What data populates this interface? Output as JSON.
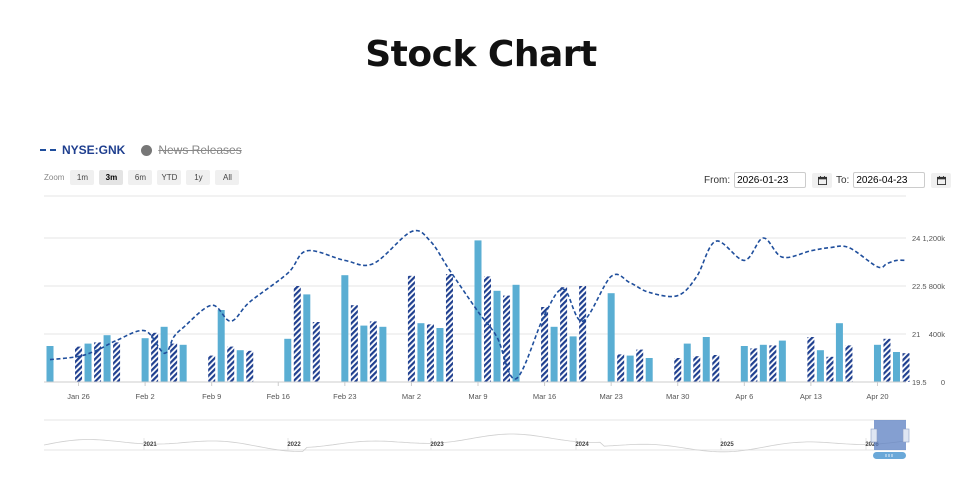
{
  "page": {
    "title": "Stock Chart"
  },
  "legend": {
    "primary": "NYSE:GNK",
    "secondary": "News Releases"
  },
  "zoom": {
    "label": "Zoom",
    "buttons": [
      "1m",
      "3m",
      "6m",
      "YTD",
      "1y",
      "All"
    ],
    "active": "3m"
  },
  "range": {
    "from_label": "From:",
    "from_value": "2026-01-23",
    "to_label": "To:",
    "to_value": "2026-04-23"
  },
  "icons": {
    "calendar": "calendar-icon",
    "news_marker": "circle-dot-icon",
    "navigator_handle": "grip-icon"
  },
  "colors": {
    "price_line": "#1f4e9c",
    "volume_bar": "#5aaed3",
    "volume_bar_hatched": "#1f3f8f",
    "navigator_mask": "#5b7fc2"
  },
  "chart_data": {
    "type": "line",
    "series": [
      {
        "name": "NYSE:GNK",
        "type": "line",
        "axis": "price",
        "x": [
          "2026-01-23",
          "2026-01-26",
          "2026-01-28",
          "2026-01-30",
          "2026-02-02",
          "2026-02-04",
          "2026-02-05",
          "2026-02-06",
          "2026-02-09",
          "2026-02-11",
          "2026-02-13",
          "2026-02-17",
          "2026-02-19",
          "2026-02-23",
          "2026-02-26",
          "2026-03-02",
          "2026-03-04",
          "2026-03-06",
          "2026-03-09",
          "2026-03-11",
          "2026-03-13",
          "2026-03-16",
          "2026-03-18",
          "2026-03-20",
          "2026-03-23",
          "2026-03-25",
          "2026-03-27",
          "2026-03-30",
          "2026-04-01",
          "2026-04-03",
          "2026-04-06",
          "2026-04-08",
          "2026-04-10",
          "2026-04-13",
          "2026-04-15",
          "2026-04-17",
          "2026-04-20",
          "2026-04-21",
          "2026-04-22",
          "2026-04-23"
        ],
        "values": [
          20.2,
          20.3,
          20.5,
          20.8,
          21.1,
          20.4,
          20.9,
          21.2,
          21.9,
          21.4,
          22.0,
          22.9,
          23.6,
          23.3,
          23.2,
          24.2,
          23.9,
          23.0,
          21.7,
          20.9,
          19.6,
          21.6,
          22.4,
          21.4,
          22.8,
          22.6,
          22.3,
          22.2,
          22.8,
          23.9,
          23.3,
          24.0,
          23.4,
          23.6,
          23.7,
          23.7,
          23.1,
          23.2,
          23.3,
          23.3
        ]
      },
      {
        "name": "",
        "type": "column",
        "axis": "volume",
        "x": [
          "2026-01-23",
          "2026-01-26",
          "2026-01-27",
          "2026-01-28",
          "2026-01-29",
          "2026-01-30",
          "2026-02-02",
          "2026-02-03",
          "2026-02-04",
          "2026-02-05",
          "2026-02-06",
          "2026-02-09",
          "2026-02-10",
          "2026-02-11",
          "2026-02-12",
          "2026-02-13",
          "2026-02-17",
          "2026-02-18",
          "2026-02-19",
          "2026-02-20",
          "2026-02-23",
          "2026-02-24",
          "2026-02-25",
          "2026-02-26",
          "2026-02-27",
          "2026-03-02",
          "2026-03-03",
          "2026-03-04",
          "2026-03-05",
          "2026-03-06",
          "2026-03-09",
          "2026-03-10",
          "2026-03-11",
          "2026-03-12",
          "2026-03-13",
          "2026-03-16",
          "2026-03-17",
          "2026-03-18",
          "2026-03-19",
          "2026-03-20",
          "2026-03-23",
          "2026-03-24",
          "2026-03-25",
          "2026-03-26",
          "2026-03-27",
          "2026-03-30",
          "2026-03-31",
          "2026-04-01",
          "2026-04-02",
          "2026-04-03",
          "2026-04-06",
          "2026-04-07",
          "2026-04-08",
          "2026-04-09",
          "2026-04-10",
          "2026-04-13",
          "2026-04-14",
          "2026-04-15",
          "2026-04-16",
          "2026-04-17",
          "2026-04-20",
          "2026-04-21",
          "2026-04-22",
          "2026-04-23"
        ],
        "values": [
          300,
          295,
          320,
          330,
          390,
          330,
          365,
          410,
          460,
          320,
          310,
          220,
          600,
          295,
          265,
          260,
          360,
          800,
          730,
          500,
          890,
          640,
          470,
          505,
          460,
          885,
          490,
          480,
          450,
          900,
          1180,
          880,
          760,
          720,
          810,
          625,
          460,
          790,
          380,
          800,
          740,
          230,
          220,
          270,
          200,
          200,
          320,
          215,
          375,
          225,
          300,
          280,
          310,
          305,
          345,
          375,
          265,
          210,
          490,
          305,
          310,
          360,
          250,
          240
        ]
      }
    ],
    "title": "",
    "xlabel": "",
    "ylabel": "",
    "x_ticks": [
      "Jan 26",
      "Feb 2",
      "Feb 9",
      "Feb 16",
      "Feb 23",
      "Mar 2",
      "Mar 9",
      "Mar 16",
      "Mar 23",
      "Mar 30",
      "Apr 6",
      "Apr 13",
      "Apr 20"
    ],
    "price_ticks": [
      "19.5",
      "21",
      "22.5",
      "24"
    ],
    "volume_ticks": [
      "0",
      "400k",
      "800k",
      "1,200k"
    ],
    "price_ylim": [
      19.5,
      24
    ],
    "volume_ylim": [
      0,
      1200
    ],
    "grid": true,
    "navigator": {
      "years": [
        "2021",
        "2022",
        "2023",
        "2024",
        "2025",
        "2026"
      ]
    }
  }
}
